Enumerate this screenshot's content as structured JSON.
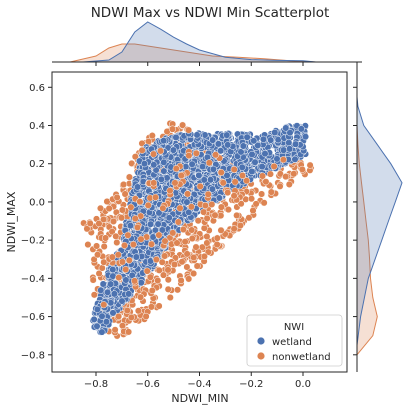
{
  "chart_data": {
    "type": "scatter",
    "title": "NDWI Max vs NDWI Min Scatterplot",
    "xlabel": "NDWI_MIN",
    "ylabel": "NDWI_MAX",
    "xlim": [
      -0.97,
      0.17
    ],
    "ylim": [
      -0.89,
      0.68
    ],
    "xticks": [
      -0.8,
      -0.6,
      -0.4,
      -0.2,
      0.0
    ],
    "xtick_labels": [
      "−0.8",
      "−0.6",
      "−0.4",
      "−0.2",
      "0.0"
    ],
    "yticks": [
      -0.8,
      -0.6,
      -0.4,
      -0.2,
      0.0,
      0.2,
      0.4,
      0.6
    ],
    "ytick_labels": [
      "−0.8",
      "−0.6",
      "−0.4",
      "−0.2",
      "0.0",
      "0.2",
      "0.4",
      "0.6"
    ],
    "grid": false,
    "legend": {
      "title": "NWI",
      "position": "lower-right",
      "entries": [
        "wetland",
        "nonwetland"
      ]
    },
    "marginals": {
      "top": "kde of NDWI_MIN by NWI",
      "right": "kde of NDWI_MAX by NWI"
    },
    "series": [
      {
        "name": "wetland",
        "color": "#4c72b0",
        "region": [
          [
            -0.82,
            -0.66
          ],
          [
            -0.77,
            -0.4
          ],
          [
            -0.7,
            -0.22
          ],
          [
            -0.65,
            0.12
          ],
          [
            -0.62,
            0.28
          ],
          [
            -0.55,
            0.33
          ],
          [
            -0.45,
            0.36
          ],
          [
            -0.3,
            0.36
          ],
          [
            -0.15,
            0.35
          ],
          [
            -0.05,
            0.4
          ],
          [
            0.01,
            0.41
          ],
          [
            0.01,
            0.24
          ],
          [
            -0.1,
            0.18
          ],
          [
            -0.25,
            0.08
          ],
          [
            -0.4,
            -0.05
          ],
          [
            -0.5,
            -0.18
          ],
          [
            -0.6,
            -0.38
          ],
          [
            -0.7,
            -0.55
          ],
          [
            -0.78,
            -0.7
          ]
        ],
        "kde_x": [
          [
            -0.85,
            0.0
          ],
          [
            -0.75,
            0.05
          ],
          [
            -0.7,
            0.25
          ],
          [
            -0.65,
            0.75
          ],
          [
            -0.6,
            1.0
          ],
          [
            -0.55,
            0.82
          ],
          [
            -0.5,
            0.62
          ],
          [
            -0.45,
            0.45
          ],
          [
            -0.4,
            0.3
          ],
          [
            -0.3,
            0.12
          ],
          [
            -0.2,
            0.06
          ],
          [
            -0.1,
            0.04
          ],
          [
            0.0,
            0.03
          ],
          [
            0.05,
            0.0
          ]
        ],
        "kde_y": [
          [
            -0.75,
            0.0
          ],
          [
            -0.6,
            0.08
          ],
          [
            -0.4,
            0.25
          ],
          [
            -0.2,
            0.55
          ],
          [
            -0.1,
            0.7
          ],
          [
            0.0,
            0.85
          ],
          [
            0.1,
            1.0
          ],
          [
            0.2,
            0.75
          ],
          [
            0.3,
            0.45
          ],
          [
            0.4,
            0.15
          ],
          [
            0.5,
            0.02
          ],
          [
            0.55,
            0.0
          ]
        ]
      },
      {
        "name": "nonwetland",
        "color": "#dd8452",
        "region": [
          [
            -0.85,
            -0.1
          ],
          [
            -0.8,
            -0.55
          ],
          [
            -0.75,
            -0.72
          ],
          [
            -0.68,
            -0.7
          ],
          [
            -0.55,
            -0.55
          ],
          [
            -0.4,
            -0.35
          ],
          [
            -0.25,
            -0.15
          ],
          [
            -0.1,
            0.05
          ],
          [
            0.05,
            0.18
          ],
          [
            -0.05,
            0.25
          ],
          [
            -0.25,
            0.18
          ],
          [
            -0.4,
            0.3
          ],
          [
            -0.48,
            0.45
          ],
          [
            -0.62,
            0.32
          ],
          [
            -0.72,
            0.05
          ]
        ],
        "kde_x": [
          [
            -0.9,
            0.0
          ],
          [
            -0.8,
            0.15
          ],
          [
            -0.75,
            0.35
          ],
          [
            -0.7,
            0.45
          ],
          [
            -0.65,
            0.45
          ],
          [
            -0.55,
            0.35
          ],
          [
            -0.45,
            0.25
          ],
          [
            -0.35,
            0.15
          ],
          [
            -0.25,
            0.12
          ],
          [
            -0.15,
            0.08
          ],
          [
            -0.05,
            0.03
          ],
          [
            0.05,
            0.0
          ]
        ],
        "kde_y": [
          [
            -0.8,
            0.0
          ],
          [
            -0.7,
            0.35
          ],
          [
            -0.6,
            0.45
          ],
          [
            -0.5,
            0.35
          ],
          [
            -0.4,
            0.3
          ],
          [
            -0.3,
            0.28
          ],
          [
            -0.2,
            0.25
          ],
          [
            -0.1,
            0.2
          ],
          [
            0.0,
            0.15
          ],
          [
            0.1,
            0.1
          ],
          [
            0.2,
            0.05
          ],
          [
            0.3,
            0.02
          ],
          [
            0.4,
            0.0
          ]
        ]
      }
    ]
  }
}
